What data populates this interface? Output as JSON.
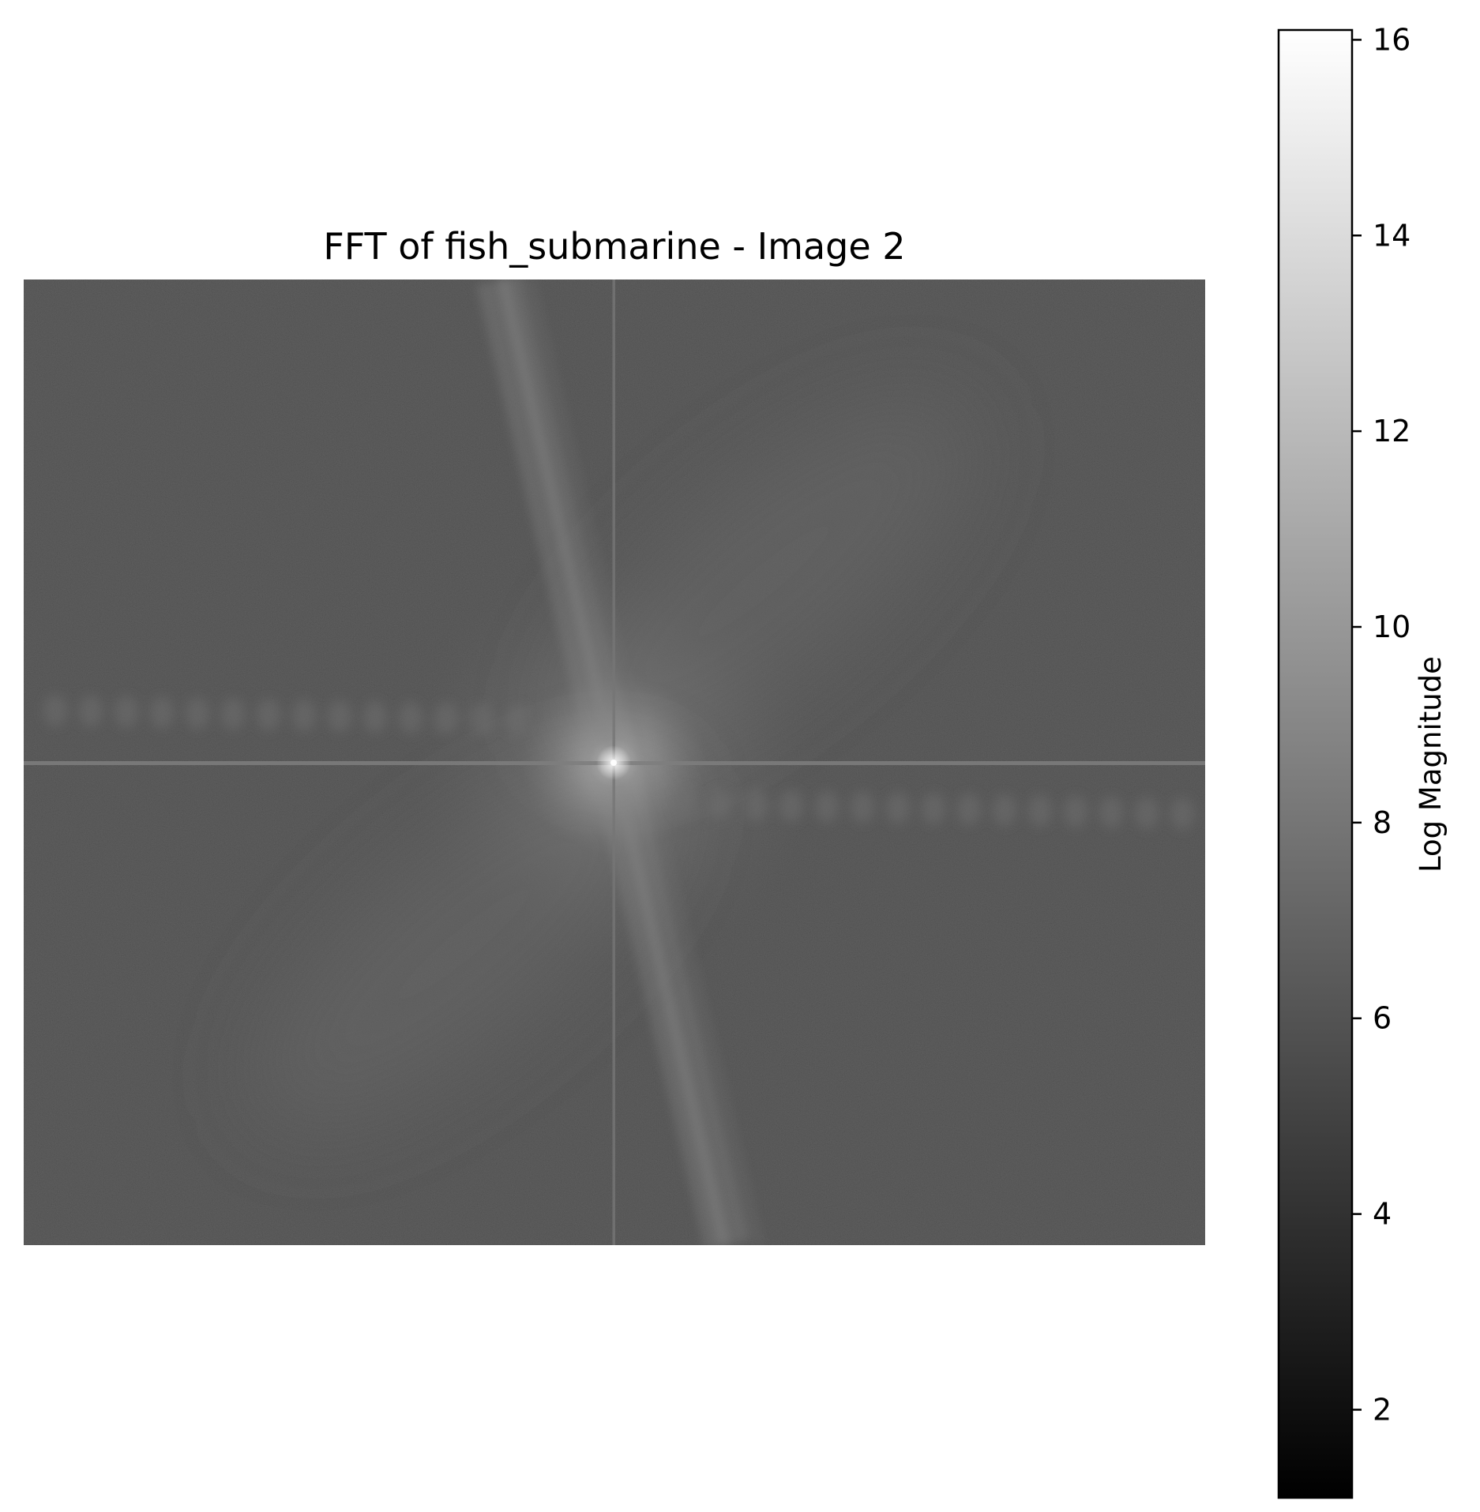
{
  "chart_data": {
    "type": "heatmap",
    "title": "FFT of fish_submarine - Image 2",
    "xlabel": "",
    "ylabel": "",
    "axes_visible": false,
    "grid": false,
    "colormap": "gray",
    "colorbar": {
      "label": "Log Magnitude",
      "vmin": 1.1,
      "vmax": 16.1,
      "ticks": [
        2,
        4,
        6,
        8,
        10,
        12,
        14,
        16
      ],
      "tick_labels": [
        "2",
        "4",
        "6",
        "8",
        "10",
        "12",
        "14",
        "16"
      ],
      "placement": "right"
    },
    "spectrum": {
      "center_peak": 16,
      "background_level": 5.2,
      "axis_line_level": 8.5,
      "features": [
        {
          "kind": "horizontal-line-through-center",
          "level": 8.5
        },
        {
          "kind": "vertical-line-through-center",
          "level": 8.0
        },
        {
          "kind": "steep-diagonal-streak",
          "direction": "upper-left to lower-right",
          "level": 9.0
        },
        {
          "kind": "dotted-horizontal-band",
          "side": "left, just above center",
          "level": 7.5
        },
        {
          "kind": "dotted-horizontal-band",
          "side": "right, just below center",
          "level": 7.5
        },
        {
          "kind": "diffuse-lobe",
          "side": "upper-right",
          "level": 7.2
        },
        {
          "kind": "diffuse-lobe",
          "side": "lower-left",
          "level": 7.2
        }
      ]
    }
  }
}
